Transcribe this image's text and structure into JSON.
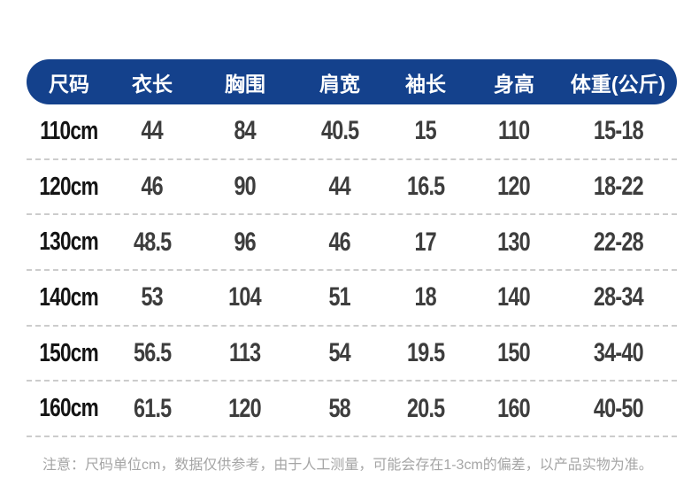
{
  "chart_data": {
    "type": "table",
    "columns": [
      "尺码",
      "衣长",
      "胸围",
      "肩宽",
      "袖长",
      "身高",
      "体重(公斤)"
    ],
    "rows": [
      [
        "110cm",
        "44",
        "84",
        "40.5",
        "15",
        "110",
        "15-18"
      ],
      [
        "120cm",
        "46",
        "90",
        "44",
        "16.5",
        "120",
        "18-22"
      ],
      [
        "130cm",
        "48.5",
        "96",
        "46",
        "17",
        "130",
        "22-28"
      ],
      [
        "140cm",
        "53",
        "104",
        "51",
        "18",
        "140",
        "28-34"
      ],
      [
        "150cm",
        "56.5",
        "113",
        "54",
        "19.5",
        "150",
        "34-40"
      ],
      [
        "160cm",
        "61.5",
        "120",
        "58",
        "20.5",
        "160",
        "40-50"
      ]
    ],
    "layout_hints": {
      "header_style": "rounded-pill",
      "row_divider": "dashed",
      "grid": "horizontal-dashed-only"
    }
  },
  "note": "注意：尺码单位cm，数据仅供参考，由于人工测量，可能会存在1-3cm的偏差，以产品实物为准。",
  "colors": {
    "header_bg": "#14418c",
    "header_text": "#ffffff",
    "value_text": "#3d3d3d",
    "size_text": "#141414",
    "divider": "#cccccc",
    "note_text": "#a5a5a5",
    "background": "#ffffff"
  }
}
